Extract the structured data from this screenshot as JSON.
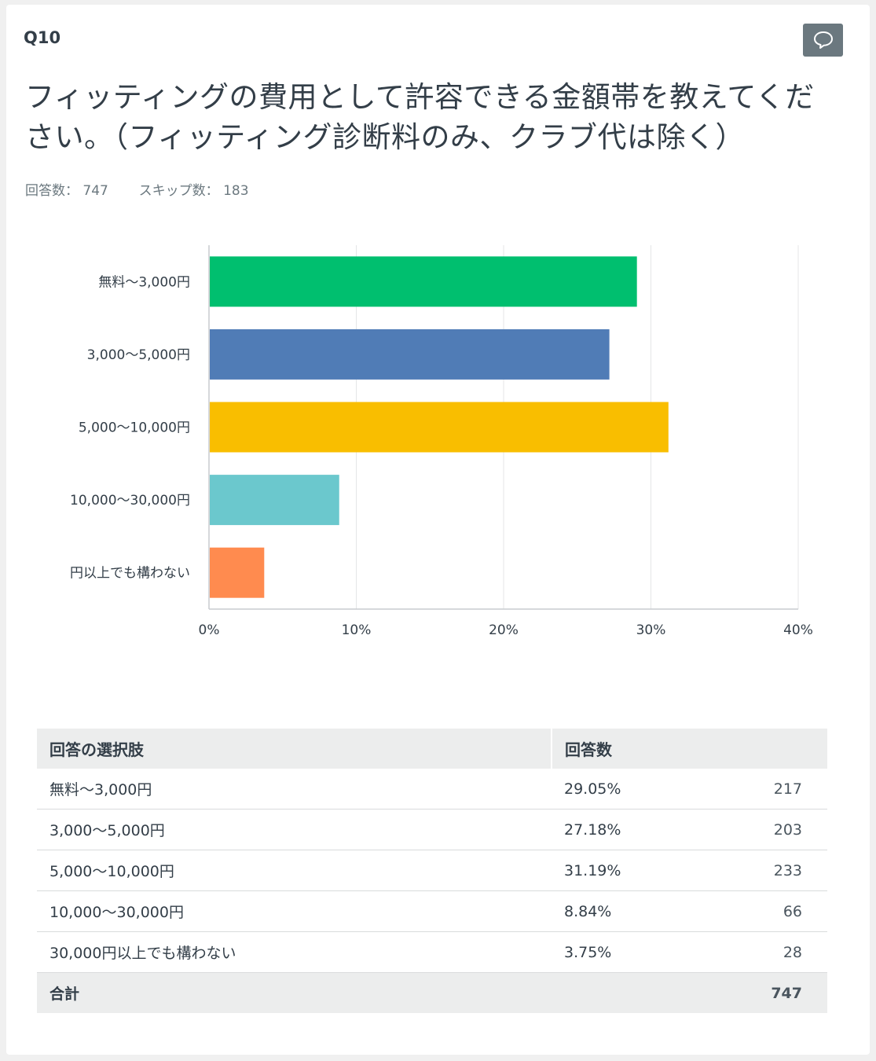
{
  "question": {
    "number": "Q10",
    "title": "フィッティングの費用として許容できる金額帯を教えてください。（フィッティング診断料のみ、クラブ代は除く）",
    "answered_label": "回答数：",
    "answered": "747",
    "skipped_label": "スキップ数：",
    "skipped": "183",
    "comment_icon": "speech-bubble-icon"
  },
  "chart_data": {
    "type": "bar",
    "orientation": "horizontal",
    "categories": [
      "無料〜3,000円",
      "3,000〜5,000円",
      "5,000〜10,000円",
      "10,000〜30,000円",
      "30,000円以上でも構わない"
    ],
    "category_labels_shown": [
      "無料〜3,000円",
      "3,000〜5,000円",
      "5,000〜10,000円",
      "10,000〜30,000円",
      "円以上でも構わない"
    ],
    "values": [
      29.05,
      27.18,
      31.19,
      8.84,
      3.75
    ],
    "colors": [
      "#00bf6f",
      "#507cb6",
      "#f9be00",
      "#6bc8cd",
      "#ff8b4f"
    ],
    "xlim": [
      0,
      40
    ],
    "xticks": [
      "0%",
      "10%",
      "20%",
      "30%",
      "40%"
    ],
    "grid": true
  },
  "table": {
    "headers": [
      "回答の選択肢",
      "回答数"
    ],
    "rows": [
      {
        "choice": "無料〜3,000円",
        "pct": "29.05%",
        "count": "217"
      },
      {
        "choice": "3,000〜5,000円",
        "pct": "27.18%",
        "count": "203"
      },
      {
        "choice": "5,000〜10,000円",
        "pct": "31.19%",
        "count": "233"
      },
      {
        "choice": "10,000〜30,000円",
        "pct": "8.84%",
        "count": "66"
      },
      {
        "choice": "30,000円以上でも構わない",
        "pct": "3.75%",
        "count": "28"
      }
    ],
    "total_label": "合計",
    "total": "747"
  }
}
